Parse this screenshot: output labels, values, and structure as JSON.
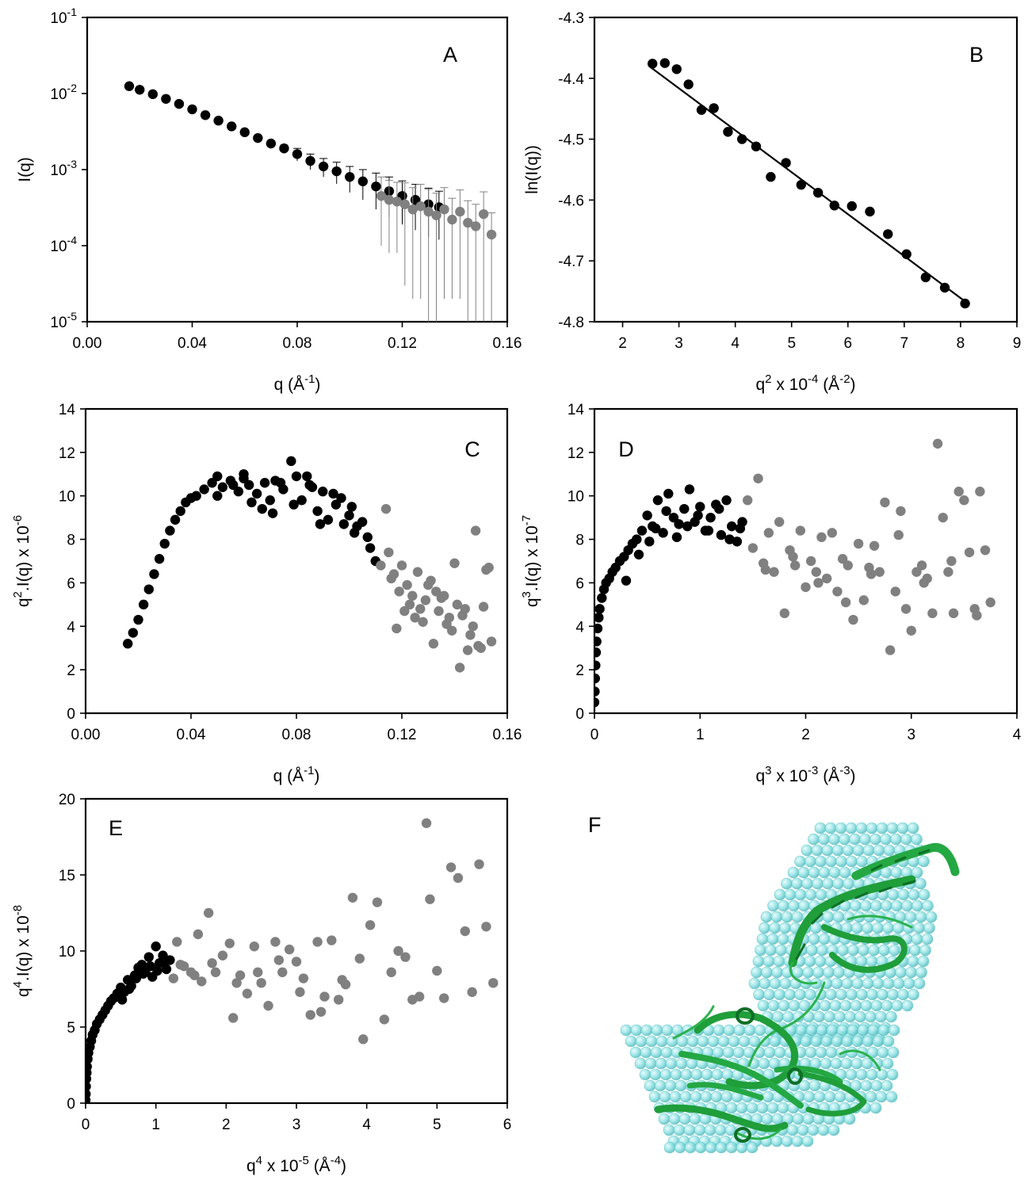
{
  "colors": {
    "primary": "#000000",
    "secondary": "#808080",
    "sphere": "#8fe2e4",
    "ribbon": "#1f9e3a"
  },
  "chart_data": [
    {
      "id": "A",
      "type": "scatter",
      "panel_label": "A",
      "yscale": "log",
      "xlim": [
        0.0,
        0.16
      ],
      "ylim": [
        1e-05,
        0.1
      ],
      "xticks": [
        "0.00",
        "0.04",
        "0.08",
        "0.12",
        "0.16"
      ],
      "yticks": [
        {
          "base": "10",
          "exp": "-5"
        },
        {
          "base": "10",
          "exp": "-4"
        },
        {
          "base": "10",
          "exp": "-3"
        },
        {
          "base": "10",
          "exp": "-2"
        },
        {
          "base": "10",
          "exp": "-1"
        }
      ],
      "xlabel": {
        "base": "q (Å",
        "sup": "-1",
        "post": ")"
      },
      "ylabel": {
        "base": "I(q)"
      },
      "series": [
        {
          "color": "#000000",
          "x": [
            0.016,
            0.02,
            0.025,
            0.03,
            0.035,
            0.04,
            0.045,
            0.05,
            0.055,
            0.06,
            0.065,
            0.07,
            0.075,
            0.08,
            0.085,
            0.09,
            0.095,
            0.1,
            0.105,
            0.11,
            0.115,
            0.12,
            0.125,
            0.13,
            0.134
          ],
          "y": [
            0.0125,
            0.0112,
            0.0098,
            0.0085,
            0.0073,
            0.0062,
            0.0052,
            0.0044,
            0.0037,
            0.0031,
            0.0026,
            0.0022,
            0.0019,
            0.0016,
            0.0013,
            0.0011,
            0.00095,
            0.0008,
            0.0007,
            0.0006,
            0.00052,
            0.00045,
            0.0004,
            0.00035,
            0.00032
          ],
          "err": [
            0.0002,
            0.0002,
            0.0002,
            0.0002,
            0.0002,
            0.00015,
            0.00015,
            0.00015,
            0.0002,
            0.0002,
            0.0002,
            0.0002,
            0.0002,
            0.0003,
            0.0003,
            0.0003,
            0.0003,
            0.0003,
            0.0003,
            0.0003,
            0.00028,
            0.00026,
            0.00024,
            0.00022,
            0.0002
          ]
        },
        {
          "color": "#808080",
          "x": [
            0.112,
            0.115,
            0.118,
            0.121,
            0.124,
            0.127,
            0.13,
            0.133,
            0.136,
            0.139,
            0.142,
            0.145,
            0.148,
            0.151,
            0.154
          ],
          "y": [
            0.00045,
            0.0004,
            0.00038,
            0.00035,
            0.0003,
            0.00033,
            0.00028,
            0.00025,
            0.0003,
            0.00022,
            0.00028,
            0.0002,
            0.00018,
            0.00026,
            0.00014
          ],
          "err": [
            0.00035,
            0.00032,
            0.0003,
            0.00032,
            0.00028,
            0.00031,
            0.00027,
            0.00024,
            0.00028,
            0.0002,
            0.00026,
            0.00019,
            0.00017,
            0.00025,
            0.00013
          ]
        }
      ]
    },
    {
      "id": "B",
      "type": "scatter",
      "panel_label": "B",
      "xlim": [
        1.5,
        9.0
      ],
      "ylim": [
        -4.8,
        -4.3
      ],
      "xticks": [
        "2",
        "3",
        "4",
        "5",
        "6",
        "7",
        "8",
        "9"
      ],
      "yticks": [
        "-4.8",
        "-4.7",
        "-4.6",
        "-4.5",
        "-4.4",
        "-4.3"
      ],
      "xlabel": {
        "base": "q",
        "sup": "2",
        "post": " x 10",
        "sup2": "-4",
        "post2": " (Å",
        "sup3": "-2",
        "post3": ")"
      },
      "ylabel": {
        "base": "ln(I(q))"
      },
      "fit_line": {
        "x": [
          2.5,
          8.1
        ],
        "y": [
          -4.382,
          -4.768
        ]
      },
      "series": [
        {
          "color": "#000000",
          "x": [
            2.53,
            2.75,
            2.96,
            3.17,
            3.4,
            3.62,
            3.87,
            4.12,
            4.37,
            4.63,
            4.9,
            5.17,
            5.47,
            5.76,
            6.07,
            6.39,
            6.71,
            7.04,
            7.38,
            7.72,
            8.08
          ],
          "y": [
            -4.376,
            -4.375,
            -4.385,
            -4.41,
            -4.452,
            -4.449,
            -4.488,
            -4.5,
            -4.512,
            -4.562,
            -4.539,
            -4.575,
            -4.588,
            -4.609,
            -4.61,
            -4.619,
            -4.656,
            -4.689,
            -4.727,
            -4.744,
            -4.77
          ]
        }
      ]
    },
    {
      "id": "C",
      "type": "scatter",
      "panel_label": "C",
      "xlim": [
        0.0,
        0.16
      ],
      "ylim": [
        0,
        14
      ],
      "xticks": [
        "0.00",
        "0.04",
        "0.08",
        "0.12",
        "0.16"
      ],
      "yticks": [
        "0",
        "2",
        "4",
        "6",
        "8",
        "10",
        "12",
        "14"
      ],
      "xlabel": {
        "base": "q (Å",
        "sup": "-1",
        "post": ")"
      },
      "ylabel": {
        "base": "q",
        "sup": "2",
        "post": ".I(q) x 10",
        "sup2": "-6"
      },
      "series": [
        {
          "color": "#000000",
          "x": [
            0.016,
            0.018,
            0.02,
            0.022,
            0.024,
            0.026,
            0.028,
            0.03,
            0.032,
            0.034,
            0.036,
            0.038,
            0.04,
            0.042,
            0.045,
            0.048,
            0.05,
            0.052,
            0.055,
            0.058,
            0.06,
            0.062,
            0.065,
            0.068,
            0.07,
            0.072,
            0.075,
            0.078,
            0.08,
            0.082,
            0.085,
            0.088,
            0.09,
            0.092,
            0.095,
            0.098,
            0.1,
            0.102,
            0.105,
            0.108,
            0.11,
            0.05,
            0.056,
            0.063,
            0.067,
            0.074,
            0.079,
            0.084,
            0.089,
            0.094,
            0.097,
            0.103,
            0.06,
            0.071,
            0.086,
            0.101,
            0.107
          ],
          "y": [
            3.2,
            3.7,
            4.3,
            5.0,
            5.7,
            6.4,
            7.1,
            7.8,
            8.4,
            8.9,
            9.3,
            9.7,
            9.9,
            10.0,
            10.3,
            10.6,
            10.9,
            10.4,
            10.7,
            10.2,
            11.0,
            10.5,
            10.1,
            10.6,
            9.8,
            10.7,
            10.3,
            11.6,
            10.9,
            9.8,
            10.5,
            9.3,
            10.2,
            8.9,
            9.6,
            8.7,
            9.1,
            8.3,
            8.8,
            7.6,
            7.0,
            10.0,
            10.5,
            9.7,
            9.4,
            10.6,
            9.6,
            10.9,
            8.7,
            10.1,
            9.9,
            8.6,
            10.8,
            9.2,
            10.4,
            9.5,
            8.1
          ]
        },
        {
          "color": "#808080",
          "x": [
            0.112,
            0.114,
            0.116,
            0.118,
            0.12,
            0.122,
            0.124,
            0.126,
            0.128,
            0.13,
            0.132,
            0.134,
            0.136,
            0.138,
            0.14,
            0.142,
            0.144,
            0.146,
            0.148,
            0.15,
            0.152,
            0.154,
            0.115,
            0.119,
            0.123,
            0.127,
            0.131,
            0.135,
            0.139,
            0.143,
            0.147,
            0.151,
            0.117,
            0.125,
            0.133,
            0.141,
            0.149,
            0.153,
            0.121,
            0.129,
            0.137,
            0.145
          ],
          "y": [
            6.8,
            9.4,
            6.2,
            3.9,
            6.8,
            5.9,
            5.4,
            6.5,
            4.2,
            5.9,
            3.2,
            4.7,
            5.4,
            4.4,
            6.9,
            2.1,
            4.8,
            3.6,
            8.4,
            3.0,
            6.6,
            3.3,
            7.4,
            5.6,
            5.0,
            4.8,
            6.1,
            5.3,
            3.8,
            4.5,
            4.0,
            4.9,
            6.4,
            4.4,
            5.6,
            5.0,
            3.1,
            6.7,
            4.7,
            5.2,
            4.1,
            2.9
          ]
        }
      ]
    },
    {
      "id": "D",
      "type": "scatter",
      "panel_label": "D",
      "xlim": [
        0,
        4
      ],
      "ylim": [
        0,
        14
      ],
      "xticks": [
        "0",
        "1",
        "2",
        "3",
        "4"
      ],
      "yticks": [
        "0",
        "2",
        "4",
        "6",
        "8",
        "10",
        "12",
        "14"
      ],
      "xlabel": {
        "base": "q",
        "sup": "3",
        "post": " x 10",
        "sup2": "-3",
        "post2": " (Å",
        "sup3": "-3",
        "post3": ")"
      },
      "ylabel": {
        "base": "q",
        "sup": "3",
        "post": ".I(q) x 10",
        "sup2": "-7"
      },
      "series": [
        {
          "color": "#000000",
          "x": [
            0.0,
            0.003,
            0.006,
            0.01,
            0.015,
            0.02,
            0.03,
            0.04,
            0.05,
            0.07,
            0.09,
            0.11,
            0.14,
            0.17,
            0.2,
            0.24,
            0.28,
            0.32,
            0.36,
            0.4,
            0.45,
            0.5,
            0.55,
            0.6,
            0.65,
            0.7,
            0.75,
            0.8,
            0.85,
            0.9,
            0.95,
            1.0,
            1.05,
            1.1,
            1.15,
            1.2,
            1.25,
            1.3,
            1.35,
            1.4,
            0.52,
            0.58,
            0.68,
            0.78,
            0.88,
            0.98,
            1.08,
            1.18,
            1.28,
            1.38,
            0.3,
            0.42
          ],
          "y": [
            0.5,
            1.0,
            1.6,
            2.2,
            2.8,
            3.3,
            3.9,
            4.4,
            4.8,
            5.3,
            5.7,
            6.0,
            6.2,
            6.5,
            6.7,
            7.0,
            7.2,
            7.5,
            7.8,
            8.0,
            8.4,
            9.1,
            8.6,
            9.8,
            8.3,
            10.1,
            9.0,
            8.7,
            9.4,
            10.3,
            8.8,
            9.5,
            8.4,
            9.0,
            9.6,
            8.2,
            9.8,
            8.6,
            7.9,
            8.8,
            7.9,
            8.5,
            9.3,
            8.1,
            8.6,
            9.1,
            8.4,
            9.4,
            8.0,
            8.5,
            6.1,
            7.3
          ]
        },
        {
          "color": "#808080",
          "x": [
            1.45,
            1.5,
            1.55,
            1.6,
            1.65,
            1.7,
            1.75,
            1.8,
            1.85,
            1.9,
            1.95,
            2.0,
            2.05,
            2.1,
            2.15,
            2.2,
            2.25,
            2.3,
            2.35,
            2.4,
            2.45,
            2.5,
            2.55,
            2.6,
            2.65,
            2.7,
            2.75,
            2.8,
            2.85,
            2.9,
            2.95,
            3.0,
            3.05,
            3.1,
            3.15,
            3.2,
            3.25,
            3.3,
            3.35,
            3.4,
            3.45,
            3.5,
            3.55,
            3.6,
            3.65,
            3.7,
            3.75,
            1.62,
            1.88,
            2.12,
            2.38,
            2.62,
            2.88,
            3.12,
            3.38,
            3.62
          ],
          "y": [
            9.8,
            7.6,
            10.8,
            6.9,
            8.3,
            6.5,
            8.8,
            4.6,
            7.5,
            6.8,
            8.4,
            5.8,
            7.0,
            6.5,
            8.1,
            6.2,
            8.3,
            5.6,
            7.1,
            6.8,
            4.3,
            7.8,
            5.2,
            6.7,
            7.7,
            6.5,
            9.7,
            2.9,
            5.6,
            9.3,
            4.8,
            3.8,
            6.5,
            6.8,
            6.2,
            4.6,
            12.4,
            9.0,
            6.5,
            4.6,
            10.2,
            9.8,
            7.4,
            4.8,
            10.2,
            7.5,
            5.1,
            6.6,
            7.2,
            6.0,
            5.1,
            6.4,
            8.2,
            6.0,
            7.0,
            4.5
          ]
        }
      ]
    },
    {
      "id": "E",
      "type": "scatter",
      "panel_label": "E",
      "xlim": [
        0,
        6
      ],
      "ylim": [
        0,
        20
      ],
      "xticks": [
        "0",
        "1",
        "2",
        "3",
        "4",
        "5",
        "6"
      ],
      "yticks": [
        "0",
        "5",
        "10",
        "15",
        "20"
      ],
      "xlabel": {
        "base": "q",
        "sup": "4",
        "post": " x 10",
        "sup2": "-5",
        "post2": " (Å",
        "sup3": "-4",
        "post3": ")"
      },
      "ylabel": {
        "base": "q",
        "sup": "4",
        "post": ".I(q) x 10",
        "sup2": "-8"
      },
      "series": [
        {
          "color": "#000000",
          "x": [
            0.0,
            0.003,
            0.006,
            0.01,
            0.015,
            0.02,
            0.03,
            0.04,
            0.06,
            0.08,
            0.1,
            0.13,
            0.16,
            0.2,
            0.24,
            0.28,
            0.32,
            0.36,
            0.4,
            0.45,
            0.5,
            0.55,
            0.6,
            0.65,
            0.7,
            0.75,
            0.8,
            0.85,
            0.9,
            0.95,
            1.0,
            1.05,
            1.1,
            1.15,
            1.2,
            0.52,
            0.62,
            0.72,
            0.82,
            0.92,
            1.02,
            1.12
          ],
          "y": [
            0.2,
            0.6,
            1.1,
            1.6,
            2.0,
            2.4,
            2.9,
            3.3,
            3.7,
            4.1,
            4.5,
            4.8,
            5.2,
            5.5,
            5.8,
            6.1,
            6.4,
            6.7,
            6.9,
            7.2,
            7.6,
            7.3,
            8.1,
            7.7,
            8.4,
            8.9,
            9.1,
            8.6,
            9.6,
            8.3,
            10.3,
            9.2,
            9.7,
            8.8,
            9.4,
            6.8,
            7.5,
            8.2,
            8.5,
            9.0,
            8.7,
            9.3
          ]
        },
        {
          "color": "#808080",
          "x": [
            1.25,
            1.3,
            1.4,
            1.5,
            1.6,
            1.65,
            1.75,
            1.85,
            1.95,
            2.05,
            2.1,
            2.2,
            2.3,
            2.4,
            2.5,
            2.6,
            2.7,
            2.8,
            2.9,
            3.0,
            3.1,
            3.2,
            3.3,
            3.4,
            3.5,
            3.6,
            3.7,
            3.8,
            3.9,
            3.95,
            4.05,
            4.15,
            4.25,
            4.35,
            4.45,
            4.55,
            4.65,
            4.75,
            4.85,
            4.9,
            5.0,
            5.1,
            5.2,
            5.3,
            5.4,
            5.5,
            5.6,
            5.7,
            5.8,
            1.35,
            1.55,
            1.8,
            2.15,
            2.45,
            2.75,
            3.05,
            3.35,
            3.65
          ],
          "y": [
            8.2,
            10.6,
            9.0,
            8.6,
            11.1,
            8.0,
            12.5,
            8.6,
            9.7,
            10.5,
            5.6,
            8.4,
            7.2,
            10.3,
            7.9,
            6.4,
            10.6,
            8.6,
            10.1,
            9.3,
            8.2,
            5.8,
            10.6,
            7.0,
            10.7,
            6.8,
            7.8,
            13.5,
            9.5,
            4.2,
            11.7,
            13.2,
            5.5,
            8.6,
            10.0,
            9.6,
            6.8,
            7.0,
            18.4,
            13.4,
            8.7,
            6.9,
            15.5,
            14.8,
            11.3,
            7.3,
            15.7,
            11.6,
            7.9,
            9.1,
            8.4,
            9.2,
            7.9,
            8.6,
            9.4,
            7.3,
            6.0,
            8.1
          ]
        }
      ]
    }
  ],
  "panel_f": {
    "label": "F"
  }
}
